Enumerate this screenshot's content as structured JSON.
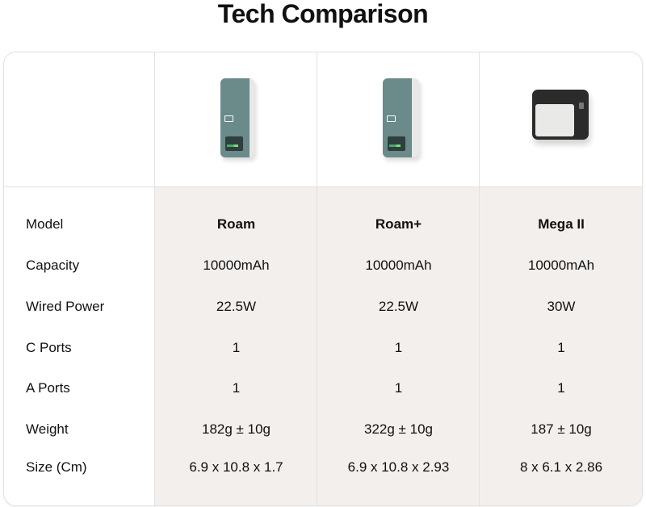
{
  "title": "Tech Comparison",
  "row_labels": [
    "Model",
    "Capacity",
    "Wired Power",
    "C Ports",
    "A Ports",
    "Weight",
    "Size (Cm)"
  ],
  "products": [
    {
      "image": "roam-power-bank-image",
      "values": [
        "Roam",
        "10000mAh",
        "22.5W",
        "1",
        "1",
        "182g ± 10g",
        "6.9 x 10.8 x 1.7"
      ]
    },
    {
      "image": "roam-plus-power-bank-image",
      "values": [
        "Roam+",
        "10000mAh",
        "22.5W",
        "1",
        "1",
        "322g ± 10g",
        "6.9 x 10.8 x 2.93"
      ]
    },
    {
      "image": "mega-ii-power-bank-image",
      "values": [
        "Mega II",
        "10000mAh",
        "30W",
        "1",
        "1",
        "187 ± 10g",
        "8 x 6.1 x 2.86"
      ]
    }
  ],
  "colors": {
    "product_column_bg": "#f2efed",
    "border": "#e2e2e2"
  }
}
